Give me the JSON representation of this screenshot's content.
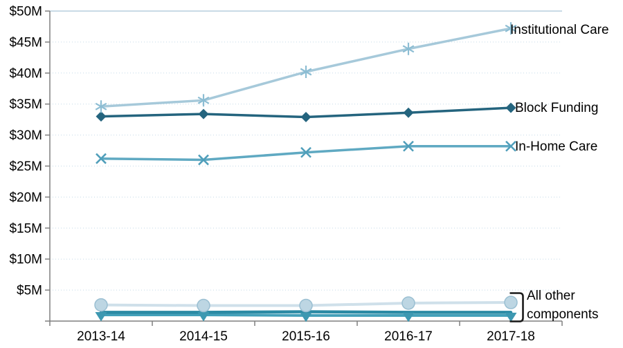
{
  "chart_data": {
    "type": "line",
    "title": "",
    "xlabel": "",
    "ylabel": "",
    "ylim": [
      0,
      50
    ],
    "y_tick_step": 5,
    "grid": "horizontal dotted light-blue, solid top border",
    "legend": "inline labels at right of lines",
    "categories": [
      "2013-14",
      "2014-15",
      "2015-16",
      "2016-17",
      "2017-18"
    ],
    "y_ticks": [
      "$5M",
      "$10M",
      "$15M",
      "$20M",
      "$25M",
      "$30M",
      "$35M",
      "$40M",
      "$45M",
      "$50M"
    ],
    "series": [
      {
        "name": "Institutional Care",
        "marker": "asterisk",
        "color": "#a6c9da",
        "marker_color": "#8cbdd3",
        "width": 3.5,
        "values": [
          34.6,
          35.6,
          40.2,
          43.9,
          47.2
        ]
      },
      {
        "name": "Block Funding",
        "marker": "diamond",
        "color": "#24647e",
        "marker_color": "#24647e",
        "width": 3.5,
        "values": [
          33.0,
          33.4,
          32.9,
          33.6,
          34.4
        ]
      },
      {
        "name": "In-Home Care",
        "marker": "x",
        "color": "#5fa9c2",
        "marker_color": "#4f9eba",
        "width": 3.5,
        "values": [
          26.2,
          26.0,
          27.2,
          28.2,
          28.2
        ]
      },
      {
        "name": "",
        "group": "All other components",
        "marker": "circle",
        "color": "#cfe0ea",
        "marker_color": "#bdd6e3",
        "marker_stroke": "#9abfd2",
        "width": 4,
        "values": [
          2.6,
          2.5,
          2.5,
          2.9,
          3.0
        ]
      },
      {
        "name": "",
        "group": "All other components",
        "marker": "none",
        "color": "#2b8aa4",
        "marker_color": "#2b8aa4",
        "width": 4.5,
        "values": [
          1.4,
          1.4,
          1.5,
          1.4,
          1.4
        ]
      },
      {
        "name": "",
        "group": "All other components",
        "marker": "triangle-down",
        "color": "#43a0b9",
        "marker_color": "#3d98b1",
        "width": 4,
        "values": [
          1.0,
          1.0,
          0.9,
          0.9,
          0.9
        ]
      }
    ]
  },
  "annotations": {
    "institutional_care": "Institutional Care",
    "block_funding": "Block Funding",
    "in_home_care": "In-Home Care",
    "all_other_line1": "All other",
    "all_other_line2": "components"
  },
  "colors": {
    "axis": "#7f7f7f",
    "gridline": "#c3d9e7",
    "plot_top_border": "#b6cedd",
    "bracket": "#1a1a1a",
    "tick_label": "#000000"
  }
}
